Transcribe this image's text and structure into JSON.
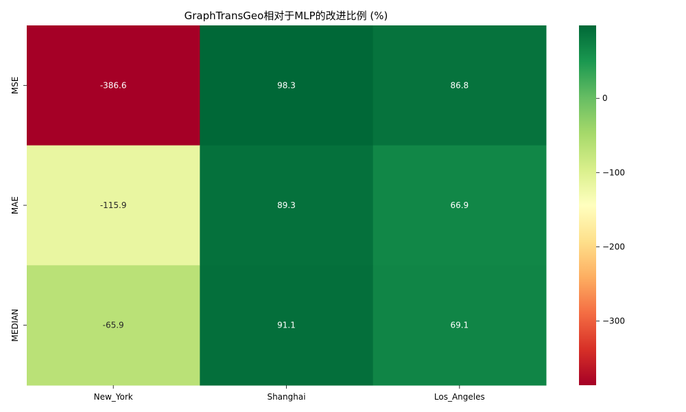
{
  "chart_data": {
    "type": "heatmap",
    "title": "GraphTransGeo相对于MLP的改进比例 (%)",
    "xlabel": "",
    "ylabel": "",
    "columns": [
      "New_York",
      "Shanghai",
      "Los_Angeles"
    ],
    "rows": [
      "MSE",
      "MAE",
      "MEDIAN"
    ],
    "values": [
      [
        -386.6,
        98.3,
        86.8
      ],
      [
        -115.9,
        89.3,
        66.9
      ],
      [
        -65.9,
        91.1,
        69.1
      ]
    ],
    "cell_labels": [
      [
        "-386.6",
        "98.3",
        "86.8"
      ],
      [
        "-115.9",
        "89.3",
        "66.9"
      ],
      [
        "-65.9",
        "91.1",
        "69.1"
      ]
    ],
    "colormap": "RdYlGn",
    "color_range": [
      -386.6,
      98.3
    ],
    "colorbar": {
      "ticks": [
        0,
        -100,
        -200,
        -300
      ],
      "tick_labels": [
        "0",
        "−100",
        "−200",
        "−300"
      ]
    }
  }
}
